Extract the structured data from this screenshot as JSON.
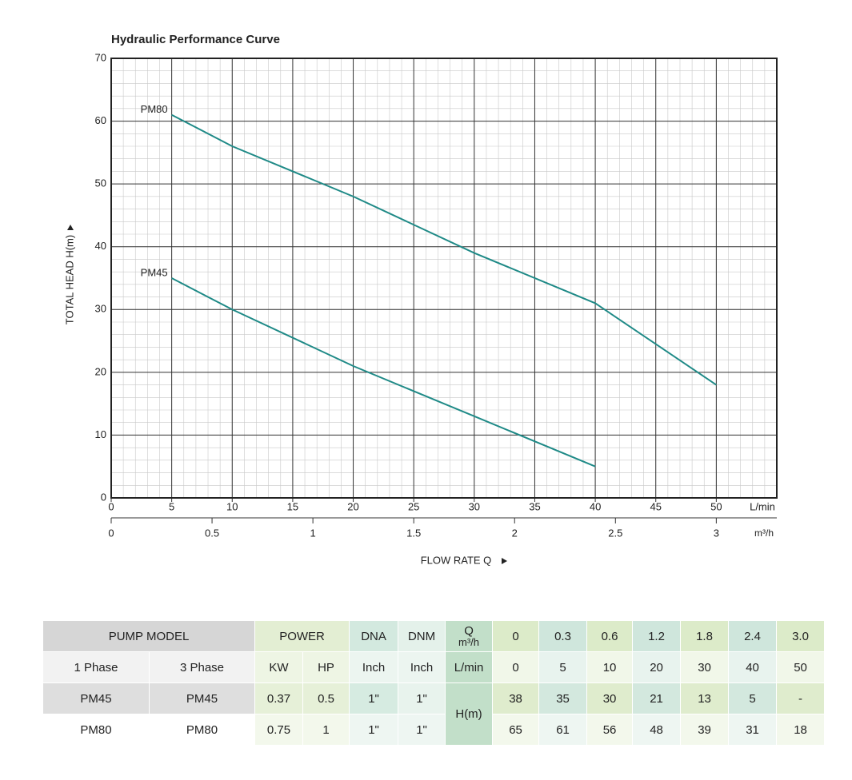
{
  "chart_data": {
    "type": "line",
    "title": "Hydraulic Performance Curve",
    "x_label": "FLOW RATE Q",
    "y_label": "TOTAL HEAD H(m)",
    "x_unit": "L/min",
    "x2_unit": "m³/h",
    "x": [
      5,
      10,
      20,
      30,
      40,
      50
    ],
    "series": [
      {
        "name": "PM80",
        "color": "#1f8a87",
        "values": [
          61,
          56,
          48,
          39,
          31,
          18
        ]
      },
      {
        "name": "PM45",
        "color": "#1f8a87",
        "values": [
          35,
          30,
          21,
          13,
          5,
          null
        ]
      }
    ],
    "xlim": [
      0,
      55
    ],
    "xticks": [
      0,
      5,
      10,
      15,
      20,
      25,
      30,
      35,
      40,
      45,
      50
    ],
    "x2lim": [
      0,
      3.3
    ],
    "x2ticks": [
      0,
      0.5,
      1,
      1.5,
      2,
      2.5,
      3
    ],
    "ylim": [
      0,
      70
    ],
    "yticks": [
      0,
      10,
      20,
      30,
      40,
      50,
      60,
      70
    ],
    "grid": true,
    "minor_grid": true
  },
  "table": {
    "header_unit": "m³/h",
    "rows": [
      [
        "PUMP MODEL",
        "POWER",
        "DNA",
        "DNM",
        "Q",
        "0",
        "0.3",
        "0.6",
        "1.2",
        "1.8",
        "2.4",
        "3.0"
      ],
      [
        "1 Phase",
        "3 Phase",
        "KW",
        "HP",
        "Inch",
        "Inch",
        "L/min",
        "0",
        "5",
        "10",
        "20",
        "30",
        "40",
        "50"
      ],
      [
        "PM45",
        "PM45",
        "0.37",
        "0.5",
        "1\"",
        "1\"",
        "H(m)",
        "38",
        "35",
        "30",
        "21",
        "13",
        "5",
        "-"
      ],
      [
        "PM80",
        "PM80",
        "0.75",
        "1",
        "1\"",
        "1\"",
        "65",
        "61",
        "56",
        "48",
        "39",
        "31",
        "18"
      ]
    ]
  }
}
